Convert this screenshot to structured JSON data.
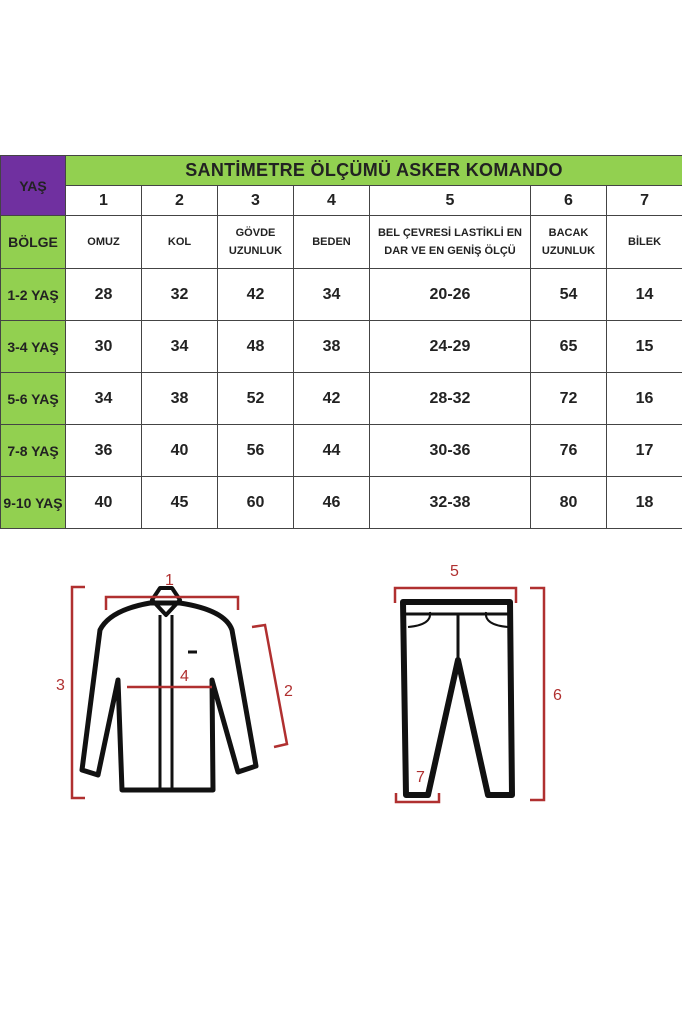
{
  "table": {
    "title": "SANTİMETRE ÖLÇÜMÜ ASKER  KOMANDO",
    "corner_label": "YAŞ",
    "numbers": [
      "1",
      "2",
      "3",
      "4",
      "5",
      "6",
      "7"
    ],
    "region_label": "BÖLGE",
    "regions": [
      "OMUZ",
      "KOL",
      "GÖVDE UZUNLUK",
      "BEDEN",
      "BEL ÇEVRESİ LASTİKLİ EN DAR VE EN GENİŞ ÖLÇÜ",
      "BACAK UZUNLUK",
      "BİLEK"
    ],
    "rows": [
      {
        "age": "1-2 YAŞ",
        "values": [
          "28",
          "32",
          "42",
          "34",
          "20-26",
          "54",
          "14"
        ]
      },
      {
        "age": "3-4 YAŞ",
        "values": [
          "30",
          "34",
          "48",
          "38",
          "24-29",
          "65",
          "15"
        ]
      },
      {
        "age": "5-6 YAŞ",
        "values": [
          "34",
          "38",
          "52",
          "42",
          "28-32",
          "72",
          "16"
        ]
      },
      {
        "age": "7-8 YAŞ",
        "values": [
          "36",
          "40",
          "56",
          "44",
          "30-36",
          "76",
          "17"
        ]
      },
      {
        "age": "9-10 YAŞ",
        "values": [
          "40",
          "45",
          "60",
          "46",
          "32-38",
          "80",
          "18"
        ]
      }
    ]
  },
  "diagram": {
    "labels": [
      "1",
      "2",
      "3",
      "4",
      "5",
      "6",
      "7"
    ]
  },
  "colors": {
    "purple": "#7030a0",
    "green": "#92d050",
    "measure_red": "#b03030"
  }
}
